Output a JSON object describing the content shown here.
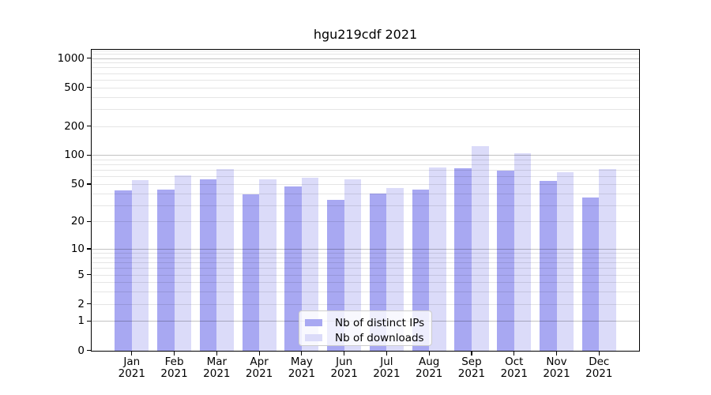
{
  "chart_data": {
    "type": "bar",
    "title": "hgu219cdf 2021",
    "categories": [
      "Jan 2021",
      "Feb 2021",
      "Mar 2021",
      "Apr 2021",
      "May 2021",
      "Jun 2021",
      "Jul 2021",
      "Aug 2021",
      "Sep 2021",
      "Oct 2021",
      "Nov 2021",
      "Dec 2021"
    ],
    "series": [
      {
        "name": "Nb of distinct IPs",
        "color": "#a8a8f2",
        "values": [
          43,
          44,
          56,
          39,
          47,
          34,
          40,
          44,
          73,
          69,
          54,
          36
        ]
      },
      {
        "name": "Nb of downloads",
        "color": "#dbdbf9",
        "values": [
          55,
          62,
          71,
          56,
          58,
          56,
          45,
          75,
          125,
          104,
          66,
          72
        ]
      }
    ],
    "yscale": "log1p",
    "ylim": [
      0,
      1236
    ],
    "y_ticks": [
      1000,
      500,
      200,
      100,
      50,
      20,
      10,
      5,
      2,
      1,
      0
    ],
    "major_gridlines": [
      1,
      10,
      100,
      1000
    ],
    "minor_gridlines": [
      2,
      3,
      4,
      5,
      6,
      7,
      8,
      9,
      20,
      30,
      40,
      50,
      60,
      70,
      80,
      90,
      200,
      300,
      400,
      500,
      600,
      700,
      800,
      900,
      1100,
      1200
    ],
    "grid": true,
    "legend_position": "lower center",
    "colors": {
      "axis": "#000000",
      "text": "#000000",
      "grid_minor": "rgba(0,0,0,0.10)",
      "grid_major": "rgba(0,0,0,0.24)",
      "legend_bg": "rgba(255,255,255,0.8)",
      "legend_border": "#cccccc"
    }
  }
}
